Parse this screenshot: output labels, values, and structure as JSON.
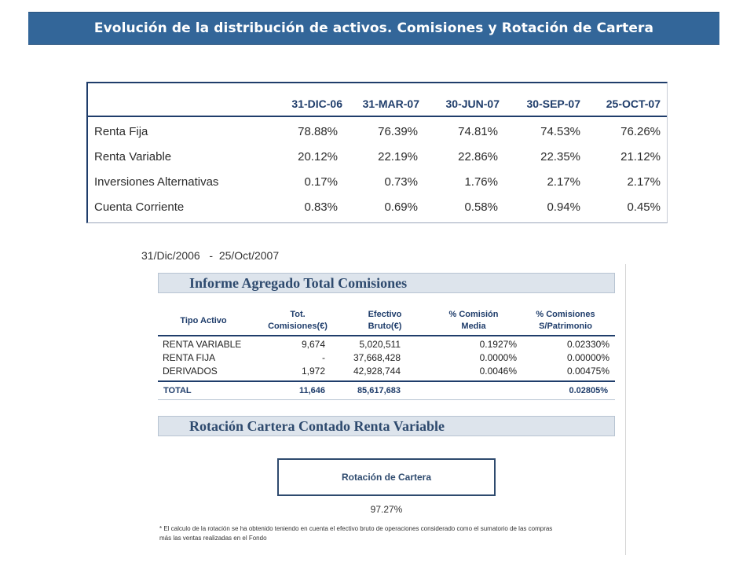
{
  "title": "Evolución de la distribución de activos. Comisiones y Rotación de Cartera",
  "allocation": {
    "headers": [
      "31-DIC-06",
      "31-MAR-07",
      "30-JUN-07",
      "30-SEP-07",
      "25-OCT-07"
    ],
    "rows": [
      {
        "label": "Renta Fija",
        "values": [
          "78.88%",
          "76.39%",
          "74.81%",
          "74.53%",
          "76.26%"
        ]
      },
      {
        "label": "Renta Variable",
        "values": [
          "20.12%",
          "22.19%",
          "22.86%",
          "22.35%",
          "21.12%"
        ]
      },
      {
        "label": "Inversiones Alternativas",
        "values": [
          "0.17%",
          "0.73%",
          "1.76%",
          "2.17%",
          "2.17%"
        ]
      },
      {
        "label": "Cuenta Corriente",
        "values": [
          "0.83%",
          "0.69%",
          "0.58%",
          "0.94%",
          "0.45%"
        ]
      }
    ]
  },
  "period": "31/Dic/2006   -  25/Oct/2007",
  "fees": {
    "band_title": "Informe Agregado Total Comisiones",
    "headers": {
      "tipo": "Tipo Activo",
      "tot_1": "Tot.",
      "tot_2": "Comisiones(€)",
      "efe_1": "Efectivo",
      "efe_2": "Bruto(€)",
      "pct_1": "% Comisión",
      "pct_2": "Media",
      "pat_1": "% Comisiones",
      "pat_2": "S/Patrimonio"
    },
    "rows": [
      {
        "tipo": "RENTA VARIABLE",
        "tot": "9,674",
        "efe": "5,020,511",
        "pct": "0.1927%",
        "pat": "0.02330%"
      },
      {
        "tipo": "RENTA FIJA",
        "tot": "-",
        "efe": "37,668,428",
        "pct": "0.0000%",
        "pat": "0.00000%"
      },
      {
        "tipo": "DERIVADOS",
        "tot": "1,972",
        "efe": "42,928,744",
        "pct": "0.0046%",
        "pat": "0.00475%"
      }
    ],
    "total": {
      "label": "TOTAL",
      "tot": "11,646",
      "efe": "85,617,683",
      "pat": "0.02805%"
    }
  },
  "rotation": {
    "band_title": "Rotación Cartera Contado Renta Variable",
    "box_label": "Rotación de Cartera",
    "value": "97.27%",
    "footnote_1": "* El calculo de la rotación se ha obtenido teniendo en cuenta el efectivo bruto de operaciones considerado como el sumatorio de las compras",
    "footnote_2": "más las ventas realizadas en el Fondo"
  },
  "colors": {
    "title_bg": "#336699",
    "navy": "#1f3d6b",
    "band_bg": "#dde4ec"
  }
}
